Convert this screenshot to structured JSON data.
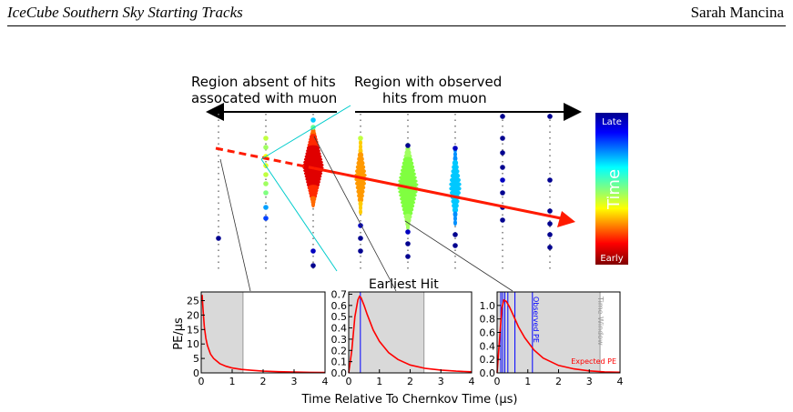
{
  "header": {
    "left": "IceCube Southern Sky Starting Tracks",
    "right": "Sarah Mancina"
  },
  "figure": {
    "label_absent_line1": "Region absent of hits",
    "label_absent_line2": "assocated with muon",
    "label_observed_line1": "Region with observed",
    "label_observed_line2": "hits from muon",
    "label_earliest_hit": "Earliest Hit",
    "colorbar": {
      "top": "Late",
      "mid": "Time",
      "bottom": "Early"
    },
    "colors": {
      "track": "#ff1a00",
      "shade": "#d9d9d9",
      "curve": "#ff0000",
      "hitline": "#0000ff",
      "connector": "#00cccc"
    }
  },
  "chart_data": [
    {
      "type": "line",
      "panel": "left",
      "ylabel": "PE/µs",
      "xlim": [
        0,
        4
      ],
      "ylim": [
        0,
        28
      ],
      "xticks": [
        "0",
        "1",
        "2",
        "3",
        "4"
      ],
      "yticks": [
        "0",
        "5",
        "10",
        "15",
        "20",
        "25"
      ],
      "ytick_values": [
        0,
        5,
        10,
        15,
        20,
        25
      ],
      "shaded_window": [
        0,
        1.35
      ],
      "series": [
        {
          "x": [
            0.03,
            0.06,
            0.1,
            0.15,
            0.2,
            0.3,
            0.4,
            0.6,
            0.8,
            1.0,
            1.3,
            1.6,
            2.0,
            2.5,
            3.0,
            3.5,
            4.0
          ],
          "y": [
            27,
            22,
            16,
            12,
            9.5,
            6.5,
            5,
            3.2,
            2.3,
            1.7,
            1.2,
            0.9,
            0.6,
            0.4,
            0.3,
            0.2,
            0.15
          ]
        }
      ]
    },
    {
      "type": "line",
      "panel": "middle",
      "xlim": [
        0,
        4
      ],
      "ylim": [
        0,
        0.72
      ],
      "xticks": [
        "0",
        "1",
        "2",
        "3",
        "4"
      ],
      "yticks": [
        "0.0",
        "0.1",
        "0.2",
        "0.3",
        "0.4",
        "0.5",
        "0.6",
        "0.7"
      ],
      "ytick_values": [
        0,
        0.1,
        0.2,
        0.3,
        0.4,
        0.5,
        0.6,
        0.7
      ],
      "shaded_window": [
        0,
        2.45
      ],
      "hit_lines": [
        0.38
      ],
      "series": [
        {
          "x": [
            0.0,
            0.1,
            0.2,
            0.3,
            0.35,
            0.4,
            0.5,
            0.6,
            0.8,
            1.0,
            1.3,
            1.6,
            2.0,
            2.5,
            3.0,
            3.5,
            4.0
          ],
          "y": [
            0.0,
            0.2,
            0.5,
            0.65,
            0.68,
            0.67,
            0.6,
            0.52,
            0.38,
            0.28,
            0.18,
            0.12,
            0.07,
            0.04,
            0.025,
            0.015,
            0.01
          ]
        }
      ]
    },
    {
      "type": "line",
      "panel": "right",
      "xlim": [
        0,
        4
      ],
      "ylim": [
        0,
        1.2
      ],
      "xticks": [
        "0",
        "1",
        "2",
        "3",
        "4"
      ],
      "yticks": [
        "0.0",
        "0.2",
        "0.4",
        "0.6",
        "0.8",
        "1.0"
      ],
      "ytick_values": [
        0,
        0.2,
        0.4,
        0.6,
        0.8,
        1.0
      ],
      "shaded_window": [
        0,
        3.35
      ],
      "hit_lines": [
        0.12,
        0.18,
        0.25,
        0.35,
        0.58,
        1.15
      ],
      "annotations": {
        "observed": "Observed PE",
        "expected": "Expected PE",
        "window": "Time Window"
      },
      "series": [
        {
          "x": [
            0.0,
            0.08,
            0.15,
            0.22,
            0.3,
            0.4,
            0.5,
            0.7,
            0.9,
            1.2,
            1.5,
            2.0,
            2.5,
            3.0,
            3.5,
            4.0
          ],
          "y": [
            0.0,
            0.5,
            0.95,
            1.08,
            1.06,
            0.98,
            0.88,
            0.68,
            0.52,
            0.34,
            0.22,
            0.11,
            0.06,
            0.03,
            0.015,
            0.01
          ]
        }
      ]
    }
  ],
  "axis": {
    "xlabel": "Time Relative To Chernkov Time (µs)"
  }
}
